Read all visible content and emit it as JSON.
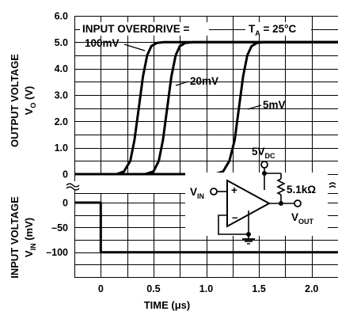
{
  "chart_data": {
    "type": "line",
    "x_label": "TIME (μs)",
    "x_ticks": [
      0,
      0.5,
      1.0,
      1.5,
      2.0
    ],
    "x_tick_labels": [
      "0",
      "0.5",
      "1.0",
      "1.5",
      "2.0"
    ],
    "xlim": [
      -0.25,
      2.25
    ],
    "output_panel": {
      "y_label_line1": "OUTPUT VOLTAGE",
      "y_label_line2": "V",
      "y_label_sub": "O",
      "y_label_unit": " (V)",
      "ylim": [
        0,
        6
      ],
      "y_tick_labels": [
        "0",
        "1.0",
        "2.0",
        "3.0",
        "4.0",
        "5.0",
        "6.0"
      ],
      "y_ticks": [
        0,
        1,
        2,
        3,
        4,
        5,
        6
      ],
      "series": [
        {
          "name": "100mV",
          "x": [
            -0.25,
            0.15,
            0.22,
            0.28,
            0.32,
            0.36,
            0.4,
            0.44,
            0.48,
            0.53,
            0.6,
            2.25
          ],
          "y": [
            0,
            0,
            0.1,
            0.5,
            1.3,
            2.5,
            3.7,
            4.5,
            4.85,
            4.97,
            5.0,
            5.0
          ]
        },
        {
          "name": "20mV",
          "x": [
            -0.25,
            0.42,
            0.5,
            0.55,
            0.59,
            0.63,
            0.67,
            0.71,
            0.75,
            0.8,
            0.88,
            2.25
          ],
          "y": [
            0,
            0,
            0.1,
            0.5,
            1.3,
            2.5,
            3.7,
            4.5,
            4.85,
            4.97,
            5.0,
            5.0
          ]
        },
        {
          "name": "5mV",
          "x": [
            -0.25,
            1.08,
            1.16,
            1.22,
            1.27,
            1.31,
            1.35,
            1.39,
            1.43,
            1.48,
            1.55,
            2.25
          ],
          "y": [
            0,
            0,
            0.1,
            0.5,
            1.3,
            2.5,
            3.7,
            4.5,
            4.85,
            4.97,
            5.0,
            5.0
          ]
        }
      ]
    },
    "input_panel": {
      "y_label_line1": "INPUT VOLTAGE",
      "y_label_line2": "V",
      "y_label_sub": "IN",
      "y_label_unit": " (mV)",
      "ylim": [
        -150,
        0
      ],
      "y_ticks": [
        0,
        -50,
        -100
      ],
      "y_tick_labels": [
        "0",
        "–50",
        "–100"
      ],
      "series": [
        {
          "name": "input step",
          "x": [
            -0.25,
            0,
            0,
            2.25
          ],
          "y": [
            0,
            0,
            -100,
            -100
          ]
        }
      ]
    },
    "annotations": {
      "overdrive_title": "INPUT OVERDRIVE =",
      "temp_main": "T",
      "temp_sub": "A",
      "temp_value": " = 25°C",
      "label_100mv": "100mV",
      "label_20mv": "20mV",
      "label_5mv": "5mV"
    },
    "circuit": {
      "supply_main": "5V",
      "supply_sub": "DC",
      "resistor": "5.1kΩ",
      "vin_main": "V",
      "vin_sub": "IN",
      "vout_main": "V",
      "vout_sub": "OUT",
      "plus_sign": "+",
      "minus_sign": "–"
    }
  }
}
